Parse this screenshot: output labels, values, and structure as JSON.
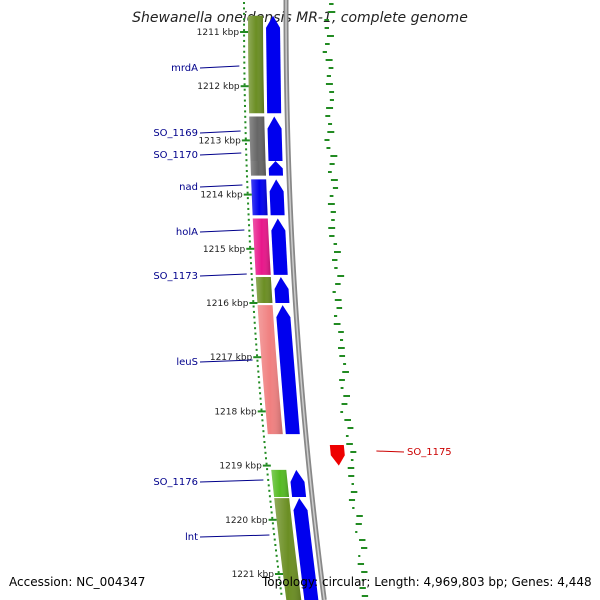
{
  "title": "Shewanella oneidensis MR-1, complete genome",
  "footer": {
    "accession": "Accession: NC_004347",
    "summary": "Topology: circular; Length: 4,969,803 bp; Genes: 4,448"
  },
  "ruler": {
    "unit": "kbp",
    "ticks": [
      {
        "label": "1211 kbp",
        "kbp": 1211
      },
      {
        "label": "1212 kbp",
        "kbp": 1212
      },
      {
        "label": "1213 kbp",
        "kbp": 1213
      },
      {
        "label": "1214 kbp",
        "kbp": 1214
      },
      {
        "label": "1215 kbp",
        "kbp": 1215
      },
      {
        "label": "1216 kbp",
        "kbp": 1216
      },
      {
        "label": "1217 kbp",
        "kbp": 1217
      },
      {
        "label": "1218 kbp",
        "kbp": 1218
      },
      {
        "label": "1219 kbp",
        "kbp": 1219
      },
      {
        "label": "1220 kbp",
        "kbp": 1220
      },
      {
        "label": "1221 kbp",
        "kbp": 1221
      }
    ]
  },
  "features": [
    {
      "name": "mrdA",
      "start_kbp": 1210.7,
      "end_kbp": 1212.5,
      "color": "#6b8e23",
      "label_color": "#00008b"
    },
    {
      "name": "SO_1169",
      "start_kbp": 1212.56,
      "end_kbp": 1213.38,
      "color": "#666666",
      "label_color": "#00008b"
    },
    {
      "name": "SO_1170",
      "start_kbp": 1213.38,
      "end_kbp": 1213.65,
      "color": "#666666",
      "label_color": "#00008b"
    },
    {
      "name": "nad",
      "start_kbp": 1213.72,
      "end_kbp": 1214.38,
      "color": "#0000ee",
      "label_color": "#00008b"
    },
    {
      "name": "holA",
      "start_kbp": 1214.44,
      "end_kbp": 1215.48,
      "color": "#e8178a",
      "label_color": "#00008b"
    },
    {
      "name": "SO_1173",
      "start_kbp": 1215.52,
      "end_kbp": 1216.0,
      "color": "#6b8e23",
      "label_color": "#00008b"
    },
    {
      "name": "leuS",
      "start_kbp": 1216.04,
      "end_kbp": 1218.42,
      "color": "#f08080",
      "label_color": "#00008b"
    },
    {
      "name": "SO_1175",
      "start_kbp": 1218.62,
      "end_kbp": 1219.0,
      "color": "#ee0000",
      "label_color": "#cc0000",
      "strand": "reverse"
    },
    {
      "name": "SO_1176",
      "start_kbp": 1219.08,
      "end_kbp": 1219.58,
      "color": "#55bb22",
      "label_color": "#00008b"
    },
    {
      "name": "lnt",
      "start_kbp": 1219.6,
      "end_kbp": 1221.6,
      "color": "#6b8e23",
      "label_color": "#00008b"
    }
  ],
  "colors": {
    "forward_cds": "#0000ee",
    "backbone": "#888888",
    "gc_skew": "#228b22",
    "label_line_forward": "#00008b",
    "label_line_reverse": "#cc0000"
  }
}
